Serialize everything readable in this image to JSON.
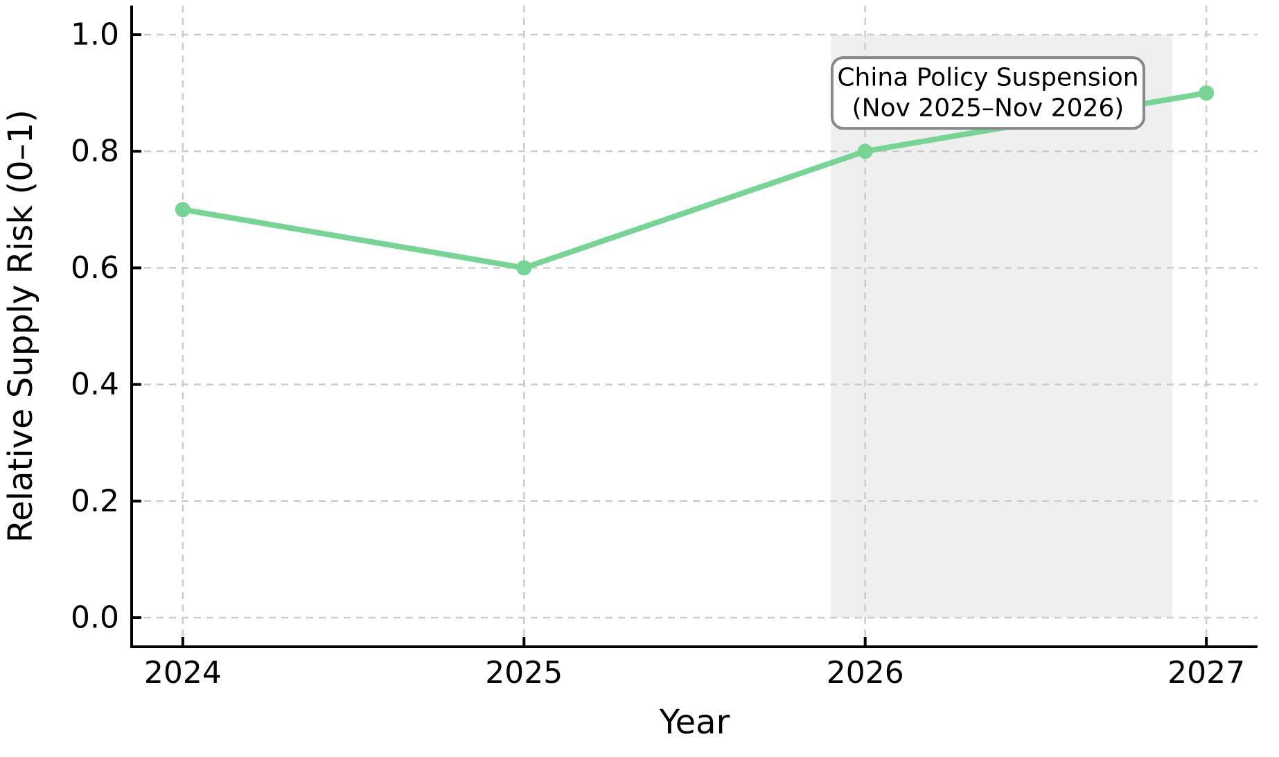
{
  "figure": {
    "background": "#ffffff"
  },
  "chart_data": {
    "type": "line",
    "title": "",
    "xlabel": "Year",
    "ylabel": "Relative Supply Risk (0–1)",
    "x": [
      2024,
      2025,
      2026,
      2027
    ],
    "series": [
      {
        "name": "Relative Supply Risk",
        "values": [
          0.7,
          0.6,
          0.8,
          0.9
        ]
      }
    ],
    "xlim": [
      2023.85,
      2027.15
    ],
    "ylim": [
      -0.05,
      1.05
    ],
    "xticks": [
      2024,
      2025,
      2026,
      2027
    ],
    "xtick_labels": [
      "2024",
      "2025",
      "2026",
      "2027"
    ],
    "yticks": [
      0.0,
      0.2,
      0.4,
      0.6,
      0.8,
      1.0
    ],
    "ytick_labels": [
      "0.0",
      "0.2",
      "0.4",
      "0.6",
      "0.8",
      "1.0"
    ],
    "grid": true,
    "grid_style": "dashed",
    "legend": false,
    "shaded_span": {
      "x0": 2025.9,
      "x1": 2026.9,
      "y0": 0.0,
      "y1": 1.0,
      "color": "#efefef"
    },
    "annotation": {
      "lines": [
        "China Policy Suspension",
        "(Nov 2025–Nov 2026)"
      ],
      "anchor_x": 2026.36,
      "anchor_y": 0.9
    },
    "colors": {
      "line": "#76d594",
      "marker": "#76d594",
      "grid": "#cccccc",
      "spine": "#000000",
      "tick": "#000000",
      "text": "#000000",
      "annotation_bg": "#ffffff",
      "annotation_border": "#888888"
    }
  }
}
